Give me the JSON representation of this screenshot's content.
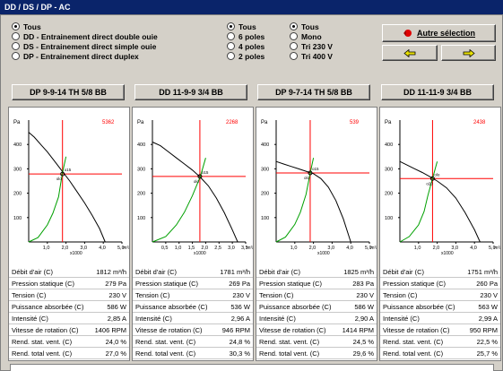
{
  "window": {
    "title": "DD / DS / DP - AC"
  },
  "typeOptions": [
    {
      "label": "Tous",
      "selected": true
    },
    {
      "label": "DD - Entrainement direct double ouie",
      "selected": false
    },
    {
      "label": "DS - Entrainement direct simple ouie",
      "selected": false
    },
    {
      "label": "DP - Entrainement direct duplex",
      "selected": false
    }
  ],
  "polesOptions": [
    {
      "label": "Tous",
      "selected": true
    },
    {
      "label": "6 poles",
      "selected": false
    },
    {
      "label": "4 poles",
      "selected": false
    },
    {
      "label": "2 poles",
      "selected": false
    }
  ],
  "voltageOptions": [
    {
      "label": "Tous",
      "selected": true
    },
    {
      "label": "Mono",
      "selected": false
    },
    {
      "label": "Tri 230 V",
      "selected": false
    },
    {
      "label": "Tri 400 V",
      "selected": false
    }
  ],
  "actions": {
    "otherSelection": "Autre sélection",
    "icons": {
      "other": "red-back-arrow-icon",
      "prev": "left-arrow-icon",
      "next": "right-arrow-icon"
    }
  },
  "colors": {
    "title": "#0a246a",
    "curveGreen": "#00a000",
    "crosshair": "#ff0000",
    "text": "#000000"
  },
  "chart_data": [
    {
      "type": "line",
      "title": "DP 9-9-14 TH 5/8 BB",
      "ylabel": "Pa",
      "xlabel": "x1000",
      "xunit": "m³/h",
      "corner": "5362",
      "points": [
        "olo",
        "o15"
      ],
      "xlim": [
        0,
        5
      ],
      "ylim": [
        0,
        500
      ],
      "xticks": [
        "1,0",
        "2,0",
        "3,0",
        "4,0",
        "5,0"
      ],
      "yticks": [
        "100",
        "200",
        "300",
        "400"
      ],
      "op": [
        1.812,
        279
      ],
      "series": [
        {
          "x": [
            0,
            0.3,
            0.7,
            1.0,
            1.4,
            1.8,
            2.2,
            2.6,
            3.0,
            3.4,
            3.8,
            4.1
          ],
          "y": [
            450,
            430,
            395,
            370,
            330,
            290,
            250,
            205,
            160,
            110,
            55,
            0
          ]
        },
        {
          "x": [
            0,
            0.5,
            1.0,
            1.3,
            1.6,
            1.8,
            2.0
          ],
          "y": [
            0,
            18,
            70,
            118,
            185,
            279,
            350
          ]
        }
      ]
    },
    {
      "type": "line",
      "title": "DD 11-9-9 3/4 BB",
      "ylabel": "Pa",
      "xlabel": "x1000",
      "xunit": "m³/h",
      "corner": "2268",
      "points": [
        "olo",
        "o15"
      ],
      "xlim": [
        0,
        3.5
      ],
      "ylim": [
        0,
        500
      ],
      "xticks": [
        "0,5",
        "1,0",
        "1,5",
        "2,0",
        "2,5",
        "3,0",
        "3,5"
      ],
      "yticks": [
        "100",
        "200",
        "300",
        "400"
      ],
      "op": [
        1.781,
        269
      ],
      "series": [
        {
          "x": [
            0,
            0.3,
            0.6,
            0.9,
            1.2,
            1.5,
            1.8,
            2.1,
            2.4,
            2.7,
            3.0,
            3.2
          ],
          "y": [
            410,
            395,
            370,
            345,
            320,
            295,
            265,
            230,
            180,
            120,
            50,
            0
          ]
        },
        {
          "x": [
            0,
            0.5,
            0.9,
            1.2,
            1.5,
            1.8,
            2.0
          ],
          "y": [
            0,
            22,
            70,
            122,
            190,
            269,
            345
          ]
        }
      ]
    },
    {
      "type": "line",
      "title": "DP 9-7-14 TH 5/8 BB",
      "ylabel": "Pa",
      "xlabel": "x1000",
      "xunit": "m³/h",
      "corner": "539",
      "points": [
        "olo",
        "o15"
      ],
      "xlim": [
        0,
        5
      ],
      "ylim": [
        0,
        500
      ],
      "xticks": [
        "1,0",
        "2,0",
        "3,0",
        "4,0",
        "5,0"
      ],
      "yticks": [
        "100",
        "200",
        "300",
        "400"
      ],
      "op": [
        1.825,
        283
      ],
      "series": [
        {
          "x": [
            0,
            0.4,
            0.8,
            1.2,
            1.6,
            2.0,
            2.4,
            2.8,
            3.2,
            3.6,
            4.0
          ],
          "y": [
            330,
            320,
            310,
            300,
            290,
            280,
            260,
            225,
            170,
            95,
            0
          ]
        },
        {
          "x": [
            0,
            0.5,
            1.0,
            1.3,
            1.6,
            1.825,
            2.0
          ],
          "y": [
            0,
            20,
            72,
            122,
            195,
            283,
            345
          ]
        }
      ]
    },
    {
      "type": "line",
      "title": "DD 11-11-9 3/4 BB",
      "ylabel": "Pa",
      "xlabel": "x1000",
      "xunit": "m³/h",
      "corner": "2438",
      "points": [
        "o20",
        "olo"
      ],
      "xlim": [
        0,
        5
      ],
      "ylim": [
        0,
        500
      ],
      "xticks": [
        "1,0",
        "2,0",
        "3,0",
        "4,0",
        "5,0"
      ],
      "yticks": [
        "100",
        "200",
        "300",
        "400"
      ],
      "op": [
        1.751,
        260
      ],
      "series": [
        {
          "x": [
            0,
            0.4,
            0.8,
            1.2,
            1.6,
            2.0,
            2.5,
            3.0,
            3.5,
            4.0,
            4.3
          ],
          "y": [
            330,
            315,
            300,
            285,
            268,
            250,
            222,
            180,
            120,
            50,
            0
          ]
        },
        {
          "x": [
            0,
            0.5,
            1.0,
            1.3,
            1.5,
            1.75,
            2.0
          ],
          "y": [
            0,
            22,
            70,
            125,
            190,
            260,
            330
          ]
        }
      ]
    }
  ],
  "panels": [
    {
      "rows": [
        [
          "Débit d'air (C)",
          "1812 m³/h"
        ],
        [
          "Pression statique (C)",
          "279 Pa"
        ],
        [
          "Tension (C)",
          "230 V"
        ],
        [
          "Puissance absorbée (C)",
          "586 W"
        ],
        [
          "Intensité (C)",
          "2,85 A"
        ],
        [
          "Vitesse de rotation (C)",
          "1406 RPM"
        ],
        [
          "Rend. stat. vent. (C)",
          "24,0 %"
        ],
        [
          "Rend. total vent. (C)",
          "27,0 %"
        ]
      ]
    },
    {
      "rows": [
        [
          "Débit d'air (C)",
          "1781 m³/h"
        ],
        [
          "Pression statique (C)",
          "269 Pa"
        ],
        [
          "Tension (C)",
          "230 V"
        ],
        [
          "Puissance absorbée (C)",
          "536 W"
        ],
        [
          "Intensité (C)",
          "2,96 A"
        ],
        [
          "Vitesse de rotation (C)",
          "946 RPM"
        ],
        [
          "Rend. stat. vent. (C)",
          "24,8 %"
        ],
        [
          "Rend. total vent. (C)",
          "30,3 %"
        ]
      ]
    },
    {
      "rows": [
        [
          "Débit d'air (C)",
          "1825 m³/h"
        ],
        [
          "Pression statique (C)",
          "283 Pa"
        ],
        [
          "Tension (C)",
          "230 V"
        ],
        [
          "Puissance absorbée (C)",
          "586 W"
        ],
        [
          "Intensité (C)",
          "2,90 A"
        ],
        [
          "Vitesse de rotation (C)",
          "1414 RPM"
        ],
        [
          "Rend. stat. vent. (C)",
          "24,5 %"
        ],
        [
          "Rend. total vent. (C)",
          "29,6 %"
        ]
      ]
    },
    {
      "rows": [
        [
          "Débit d'air (C)",
          "1751 m³/h"
        ],
        [
          "Pression statique (C)",
          "260 Pa"
        ],
        [
          "Tension (C)",
          "230 V"
        ],
        [
          "Puissance absorbée (C)",
          "563 W"
        ],
        [
          "Intensité (C)",
          "2,99 A"
        ],
        [
          "Vitesse de rotation (C)",
          "950 RPM"
        ],
        [
          "Rend. stat. vent. (C)",
          "22,5 %"
        ],
        [
          "Rend. total vent. (C)",
          "25,7 %"
        ]
      ]
    }
  ]
}
